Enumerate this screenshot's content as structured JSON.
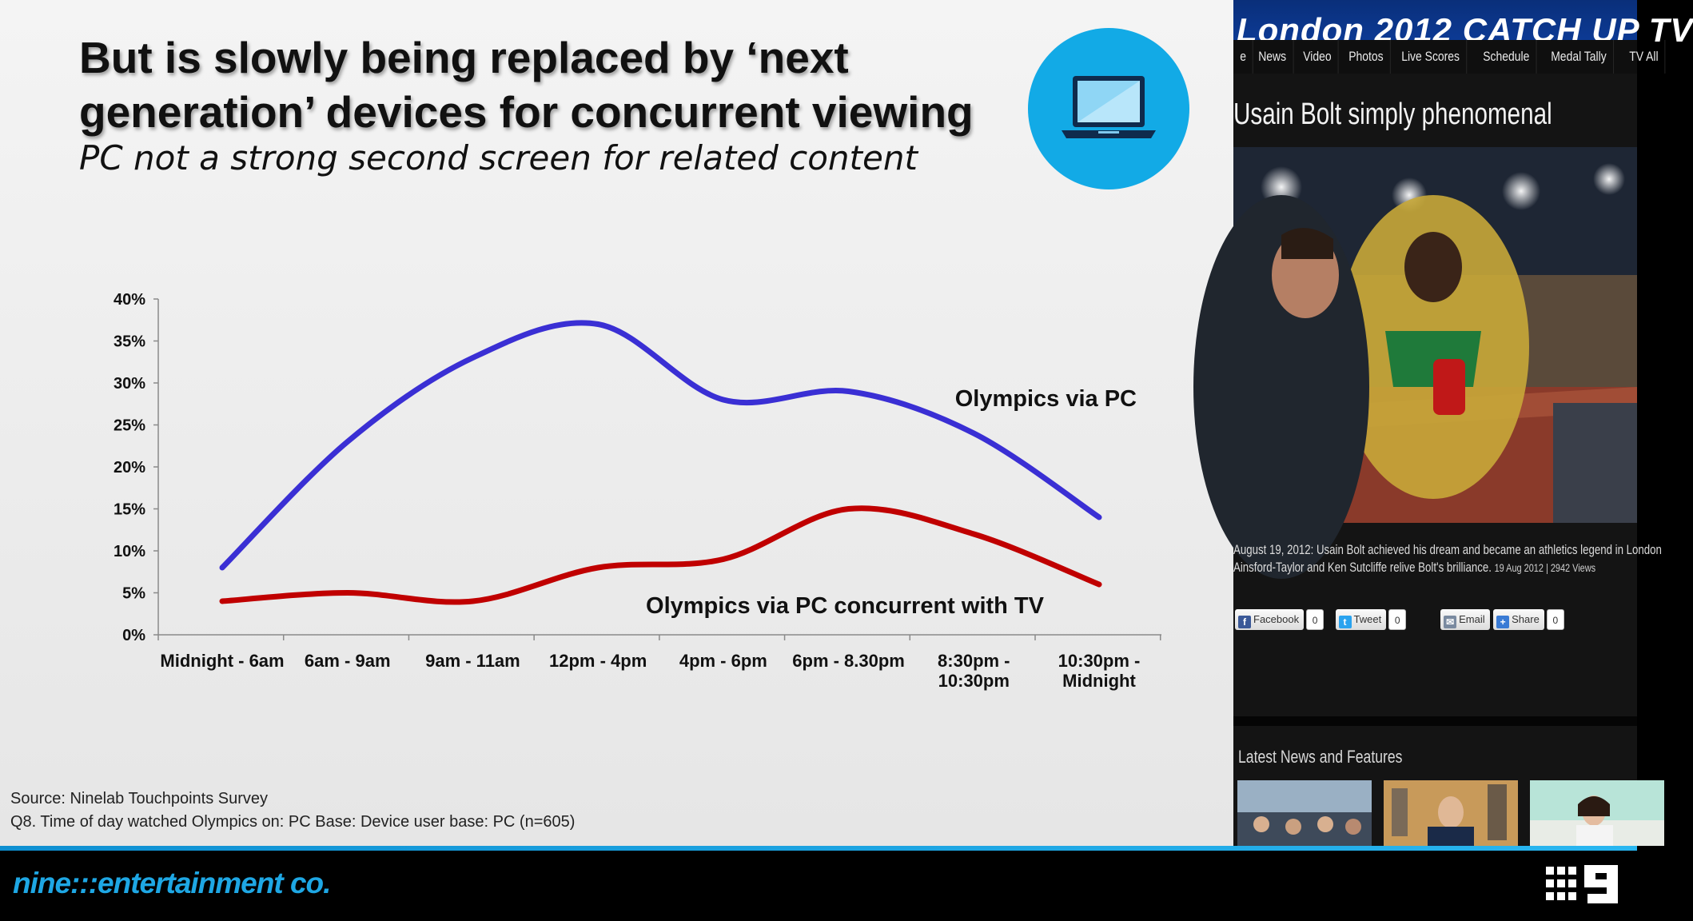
{
  "slide": {
    "title": "But is slowly being replaced by ‘next generation’ devices for concurrent viewing",
    "subtitle": "PC not a strong second screen for related content",
    "device_icon": "laptop-icon",
    "source_line1": "Source: Ninelab Touchpoints Survey",
    "source_line2": "Q8. Time of day watched Olympics on: PC Base: Device user base: PC (n=605)"
  },
  "chart_data": {
    "type": "line",
    "title": "",
    "xlabel": "",
    "ylabel": "",
    "categories": [
      "Midnight - 6am",
      "6am - 9am",
      "9am - 11am",
      "12pm - 4pm",
      "4pm - 6pm",
      "6pm - 8.30pm",
      "8:30pm - 10:30pm",
      "10:30pm - Midnight"
    ],
    "category_lines": [
      [
        "Midnight - 6am"
      ],
      [
        "6am - 9am"
      ],
      [
        "9am - 11am"
      ],
      [
        "12pm - 4pm"
      ],
      [
        "4pm - 6pm"
      ],
      [
        "6pm - 8.30pm"
      ],
      [
        "8:30pm -",
        "10:30pm"
      ],
      [
        "10:30pm -",
        "Midnight"
      ]
    ],
    "ylim": [
      0,
      40
    ],
    "yticks": [
      0,
      5,
      10,
      15,
      20,
      25,
      30,
      35,
      40
    ],
    "ytick_labels": [
      "0%",
      "5%",
      "10%",
      "15%",
      "20%",
      "25%",
      "30%",
      "35%",
      "40%"
    ],
    "grid": false,
    "legend": "inline labels",
    "series": [
      {
        "name": "Olympics via PC",
        "color": "#3a2fd4",
        "values": [
          8,
          23,
          33,
          37,
          28,
          29,
          24,
          14
        ]
      },
      {
        "name": "Olympics via PC concurrent with TV",
        "color": "#c00000",
        "values": [
          4,
          5,
          4,
          8,
          9,
          15,
          12,
          6
        ]
      }
    ]
  },
  "footer": {
    "logo_text": "nine:::entertainment co.",
    "channel_logo": "channel-9-logo"
  },
  "website": {
    "banner": "London 2012 CATCH UP TV",
    "nav": [
      "e",
      "News",
      "Video",
      "Photos",
      "Live Scores",
      "Schedule",
      "Medal Tally",
      "TV All"
    ],
    "headline": "Usain Bolt simply phenomenal",
    "caption_line1": "August 19, 2012: Usain Bolt achieved his dream and became an athletics legend in London",
    "caption_line2": "Ainsford-Taylor and Ken Sutcliffe relive Bolt's brilliance.",
    "caption_meta": "19 Aug 2012 | 2942 Views",
    "share": {
      "facebook": "Facebook",
      "facebook_count": "0",
      "tweet": "Tweet",
      "tweet_count": "0",
      "email": "Email",
      "share": "Share",
      "share_count": "0"
    },
    "latest": "Latest News and Features"
  }
}
